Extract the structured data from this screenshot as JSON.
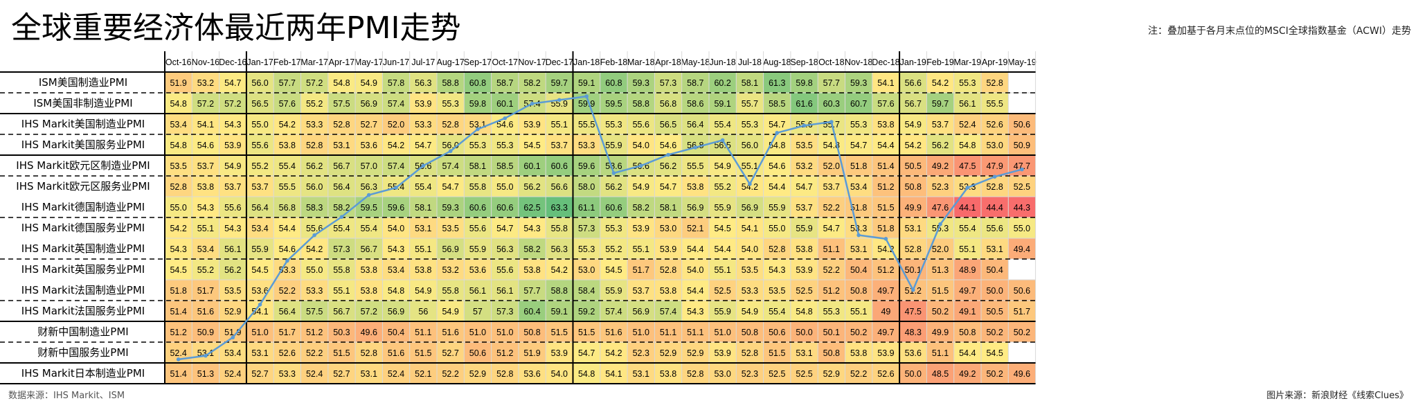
{
  "title": "全球重要经济体最近两年PMI走势",
  "note": "注：叠加基于各月末点位的MSCI全球指数基金（ACWI）走势",
  "source": "数据来源：IHS Markit、ISM",
  "credit": "图片来源：新浪财经《线索Clues》",
  "colors": {
    "low": "#f8696b",
    "mid": "#ffeb84",
    "high": "#63be7b",
    "line": "#5b9bd5",
    "grid": "#d9d9d9",
    "border": "#000000"
  },
  "chart_data": {
    "type": "heatmap",
    "columns": [
      "Oct-16",
      "Nov-16",
      "Dec-16",
      "Jan-17",
      "Feb-17",
      "Mar-17",
      "Apr-17",
      "May-17",
      "Jun-17",
      "Jul-17",
      "Aug-17",
      "Sep-17",
      "Oct-17",
      "Nov-17",
      "Dec-17",
      "Jan-18",
      "Feb-18",
      "Mar-18",
      "Apr-18",
      "May-18",
      "Jun-18",
      "Jul-18",
      "Aug-18",
      "Sep-18",
      "Oct-18",
      "Nov-18",
      "Dec-18",
      "Jan-19",
      "Feb-19",
      "Mar-19",
      "Apr-19",
      "May-19"
    ],
    "rows": [
      {
        "name": "ISM美国制造业PMI",
        "values": [
          "51.9",
          "53.2",
          "54.7",
          "56.0",
          "57.7",
          "57.2",
          "54.8",
          "54.9",
          "57.8",
          "56.3",
          "58.8",
          "60.8",
          "58.7",
          "58.2",
          "59.7",
          "59.1",
          "60.8",
          "59.3",
          "57.3",
          "58.7",
          "60.2",
          "58.1",
          "61.3",
          "59.8",
          "57.7",
          "59.3",
          "54.1",
          "56.6",
          "54.2",
          "55.3",
          "52.8",
          ""
        ]
      },
      {
        "name": "ISM美国非制造业PMI",
        "values": [
          "54.8",
          "57.2",
          "57.2",
          "56.5",
          "57.6",
          "55.2",
          "57.5",
          "56.9",
          "57.4",
          "53.9",
          "55.3",
          "59.8",
          "60.1",
          "57.4",
          "55.9",
          "59.9",
          "59.5",
          "58.8",
          "56.8",
          "58.6",
          "59.1",
          "55.7",
          "58.5",
          "61.6",
          "60.3",
          "60.7",
          "57.6",
          "56.7",
          "59.7",
          "56.1",
          "55.5",
          ""
        ]
      },
      {
        "name": "IHS Markit美国制造业PMI",
        "values": [
          "53.4",
          "54.1",
          "54.3",
          "55.0",
          "54.2",
          "53.3",
          "52.8",
          "52.7",
          "52.0",
          "53.3",
          "52.8",
          "53.1",
          "54.6",
          "53.9",
          "55.1",
          "55.5",
          "55.3",
          "55.6",
          "56.5",
          "56.4",
          "55.4",
          "55.3",
          "54.7",
          "55.6",
          "55.7",
          "55.3",
          "53.8",
          "54.9",
          "53.7",
          "52.4",
          "52.6",
          "50.6"
        ]
      },
      {
        "name": "IHS Markit美国服务业PMI",
        "values": [
          "54.8",
          "54.6",
          "53.9",
          "55.6",
          "53.8",
          "52.8",
          "53.1",
          "53.6",
          "54.2",
          "54.7",
          "56.0",
          "55.3",
          "55.3",
          "54.5",
          "53.7",
          "53.3",
          "55.9",
          "54.0",
          "54.6",
          "56.8",
          "56.5",
          "56.0",
          "54.8",
          "53.5",
          "54.8",
          "54.7",
          "54.4",
          "54.2",
          "56.2",
          "54.8",
          "53.0",
          "50.9"
        ]
      },
      {
        "name": "IHS Markit欧元区制造业PMI",
        "values": [
          "53.5",
          "53.7",
          "54.9",
          "55.2",
          "55.4",
          "56.2",
          "56.7",
          "57.0",
          "57.4",
          "56.6",
          "57.4",
          "58.1",
          "58.5",
          "60.1",
          "60.6",
          "59.6",
          "58.6",
          "56.6",
          "56.2",
          "55.5",
          "54.9",
          "55.1",
          "54.6",
          "53.2",
          "52.0",
          "51.8",
          "51.4",
          "50.5",
          "49.2",
          "47.5",
          "47.9",
          "47.7"
        ]
      },
      {
        "name": "IHS Markit欧元区服务业PMI",
        "values": [
          "52.8",
          "53.8",
          "53.7",
          "53.7",
          "55.5",
          "56.0",
          "56.4",
          "56.3",
          "55.4",
          "55.4",
          "54.7",
          "55.8",
          "55.0",
          "56.2",
          "56.6",
          "58.0",
          "56.2",
          "54.9",
          "54.7",
          "53.8",
          "55.2",
          "54.2",
          "54.4",
          "54.7",
          "53.7",
          "53.4",
          "51.2",
          "50.8",
          "52.3",
          "53.3",
          "52.8",
          "52.5"
        ]
      },
      {
        "name": "IHS Markit德国制造业PMI",
        "values": [
          "55.0",
          "54.3",
          "55.6",
          "56.4",
          "56.8",
          "58.3",
          "58.2",
          "59.5",
          "59.6",
          "58.1",
          "59.3",
          "60.6",
          "60.6",
          "62.5",
          "63.3",
          "61.1",
          "60.6",
          "58.2",
          "58.1",
          "56.9",
          "55.9",
          "56.9",
          "55.9",
          "53.7",
          "52.2",
          "51.8",
          "51.5",
          "49.9",
          "47.6",
          "44.1",
          "44.4",
          "44.3"
        ]
      },
      {
        "name": "IHS Markit德国服务业PMI",
        "values": [
          "54.2",
          "55.1",
          "54.3",
          "53.4",
          "54.4",
          "55.6",
          "55.4",
          "55.4",
          "54.0",
          "53.1",
          "53.5",
          "55.6",
          "54.7",
          "54.3",
          "55.8",
          "57.3",
          "55.3",
          "53.9",
          "53.0",
          "52.1",
          "54.5",
          "54.1",
          "55.0",
          "55.9",
          "54.7",
          "53.3",
          "51.8",
          "53.1",
          "55.3",
          "55.4",
          "55.6",
          "55.0"
        ]
      },
      {
        "name": "IHS Markit英国制造业PMI",
        "values": [
          "54.3",
          "53.4",
          "56.1",
          "55.9",
          "54.6",
          "54.2",
          "57.3",
          "56.7",
          "54.3",
          "55.1",
          "56.9",
          "55.9",
          "56.3",
          "58.2",
          "56.3",
          "55.3",
          "55.2",
          "55.1",
          "53.9",
          "54.4",
          "54.4",
          "54.0",
          "52.8",
          "53.8",
          "51.1",
          "53.1",
          "54.2",
          "52.8",
          "52.0",
          "55.1",
          "53.1",
          "49.4"
        ]
      },
      {
        "name": "IHS Markit英国服务业PMI",
        "values": [
          "54.5",
          "55.2",
          "56.2",
          "54.5",
          "53.3",
          "55.0",
          "55.8",
          "53.8",
          "53.4",
          "53.8",
          "53.2",
          "53.6",
          "55.6",
          "53.8",
          "54.2",
          "53.0",
          "54.5",
          "51.7",
          "52.8",
          "54.0",
          "55.1",
          "53.5",
          "54.3",
          "53.9",
          "52.2",
          "50.4",
          "51.2",
          "50.1",
          "51.3",
          "48.9",
          "50.4",
          ""
        ]
      },
      {
        "name": "IHS Markit法国制造业PMI",
        "values": [
          "51.8",
          "51.7",
          "53.5",
          "53.6",
          "52.2",
          "53.3",
          "55.1",
          "53.8",
          "54.8",
          "54.9",
          "55.8",
          "56.1",
          "56.1",
          "57.7",
          "58.8",
          "58.4",
          "55.9",
          "53.7",
          "53.8",
          "54.4",
          "52.5",
          "53.3",
          "53.5",
          "52.5",
          "51.2",
          "50.8",
          "49.7",
          "51.2",
          "51.5",
          "49.7",
          "50.0",
          "50.6"
        ]
      },
      {
        "name": "IHS Markit法国服务业PMI",
        "values": [
          "51.4",
          "51.6",
          "52.9",
          "54.1",
          "56.4",
          "57.5",
          "56.7",
          "57.2",
          "56.9",
          "56",
          "54.9",
          "57",
          "57.3",
          "60.4",
          "59.1",
          "59.2",
          "57.4",
          "56.9",
          "57.4",
          "54.3",
          "55.9",
          "54.9",
          "55.4",
          "54.8",
          "55.3",
          "55.1",
          "49",
          "47.5",
          "50.2",
          "49.1",
          "50.5",
          "51.7"
        ]
      },
      {
        "name": "财新中国制造业PMI",
        "values": [
          "51.2",
          "50.9",
          "51.9",
          "51.0",
          "51.7",
          "51.2",
          "50.3",
          "49.6",
          "50.4",
          "51.1",
          "51.6",
          "51.0",
          "51.0",
          "50.8",
          "51.5",
          "51.5",
          "51.6",
          "51.0",
          "51.1",
          "51.1",
          "51.0",
          "50.8",
          "50.6",
          "50.0",
          "50.1",
          "50.2",
          "49.7",
          "48.3",
          "49.9",
          "50.8",
          "50.2",
          "50.2"
        ]
      },
      {
        "name": "财新中国服务业PMI",
        "values": [
          "52.4",
          "53.1",
          "53.4",
          "53.1",
          "52.6",
          "52.2",
          "51.5",
          "52.8",
          "51.6",
          "51.5",
          "52.7",
          "50.6",
          "51.2",
          "51.9",
          "53.9",
          "54.7",
          "54.2",
          "52.3",
          "52.9",
          "52.9",
          "53.9",
          "52.8",
          "51.5",
          "53.1",
          "50.8",
          "53.8",
          "53.9",
          "53.6",
          "51.1",
          "54.4",
          "54.5",
          ""
        ]
      },
      {
        "name": "IHS Markit日本制造业PMI",
        "values": [
          "51.4",
          "51.3",
          "52.4",
          "52.7",
          "53.3",
          "52.4",
          "52.7",
          "53.1",
          "52.4",
          "52.1",
          "52.2",
          "52.9",
          "52.8",
          "53.6",
          "54.0",
          "54.8",
          "54.1",
          "53.1",
          "53.8",
          "52.8",
          "53.0",
          "52.3",
          "52.5",
          "52.5",
          "52.9",
          "52.2",
          "52.6",
          "50.0",
          "48.5",
          "49.2",
          "50.2",
          "49.6"
        ]
      }
    ],
    "color_scale": {
      "low": 44.0,
      "mid": 54.5,
      "high": 63.5
    },
    "overlay_line": {
      "name": "",
      "values": [
        0.4,
        0.5,
        1.0,
        1.9,
        3.1,
        3.8,
        4.3,
        4.9,
        5.1,
        5.7,
        6.1,
        6.7,
        7.0,
        7.4,
        7.5,
        7.6,
        5.5,
        5.7,
        6.0,
        6.2,
        6.4,
        5.2,
        6.6,
        6.8,
        6.9,
        3.8,
        3.7,
        2.3,
        4.1,
        5.1,
        5.4,
        5.6
      ]
    }
  }
}
